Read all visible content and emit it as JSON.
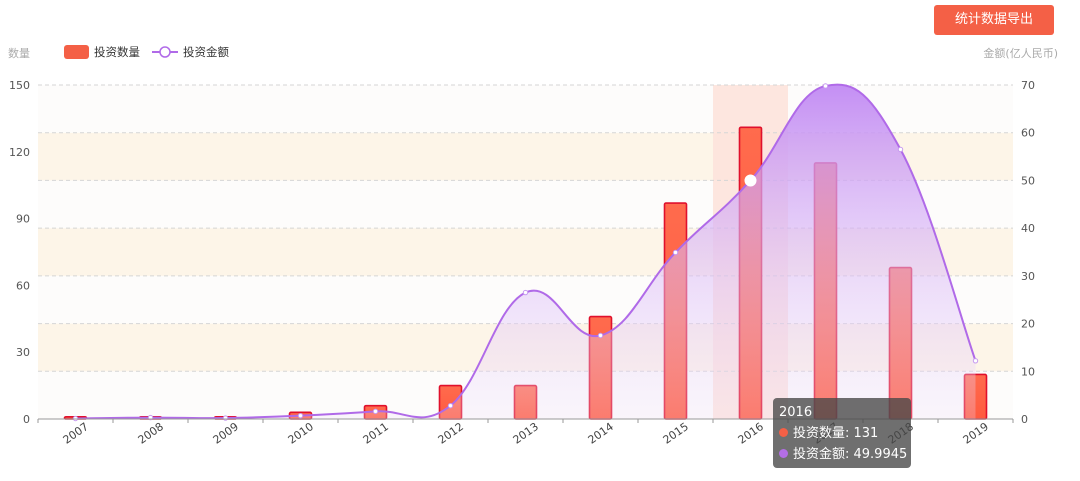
{
  "export_button": {
    "label": "统计数据导出"
  },
  "chart_data": {
    "type": "bar",
    "categories": [
      "2007",
      "2008",
      "2009",
      "2010",
      "2011",
      "2012",
      "2013",
      "2014",
      "2015",
      "2016",
      "2017",
      "2018",
      "2019"
    ],
    "series": [
      {
        "name": "投资数量",
        "type": "bar",
        "axis": "left",
        "color": "#f46046",
        "values": [
          1,
          1,
          1,
          3,
          6,
          15,
          15,
          46,
          97,
          131,
          115,
          68,
          20
        ]
      },
      {
        "name": "投资金额",
        "type": "line",
        "axis": "right",
        "color": "#b36ee6",
        "values": [
          0.1,
          0.3,
          0.2,
          0.7,
          1.6,
          2.8,
          26.5,
          17.5,
          34.9,
          49.9945,
          69.8,
          56.5,
          12.2
        ]
      }
    ],
    "y_left": {
      "label": "数量",
      "ylim": [
        0,
        150
      ],
      "ticks": [
        0,
        30,
        60,
        90,
        120,
        150
      ]
    },
    "y_right": {
      "label": "金额(亿人民币)",
      "ylim": [
        0,
        70
      ],
      "ticks": [
        0,
        10,
        20,
        30,
        40,
        50,
        60,
        70
      ]
    },
    "legend": {
      "position": "top-left"
    },
    "grid": true,
    "highlight_category": "2016",
    "tooltip": {
      "title": "2016",
      "rows": [
        {
          "text": "投资数量: 131",
          "color": "#f46046"
        },
        {
          "text": "投资金额: 49.9945",
          "color": "#b36ee6"
        }
      ]
    }
  }
}
